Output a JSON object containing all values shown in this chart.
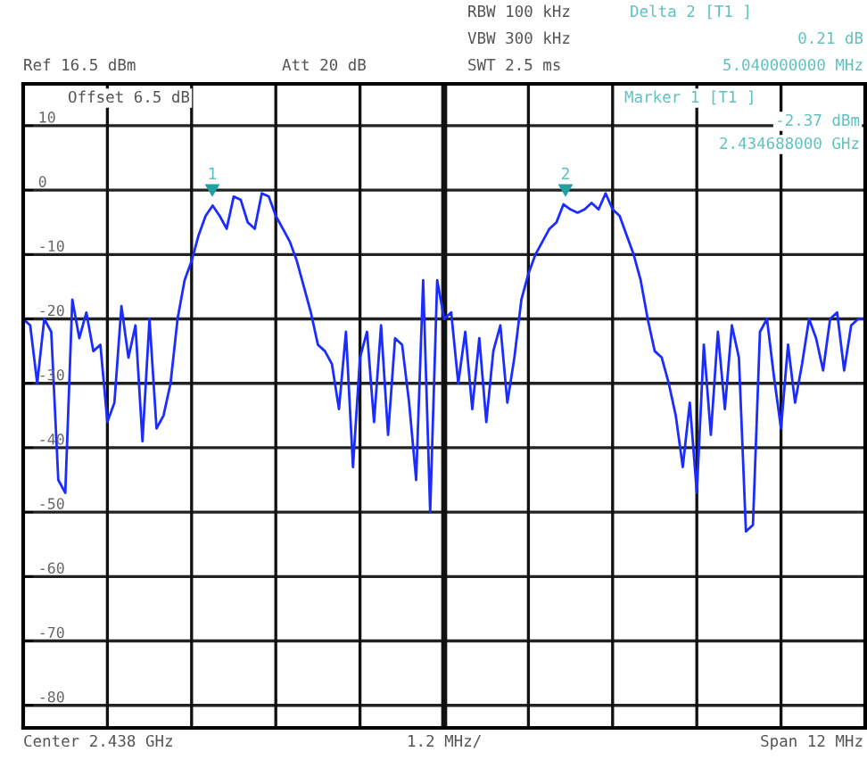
{
  "chart_data": {
    "type": "line",
    "categories": [
      null,
      null,
      null,
      null,
      null,
      null,
      null,
      null,
      null,
      null,
      null,
      null,
      null,
      null,
      null,
      null,
      null,
      null,
      null,
      null,
      null,
      null,
      null,
      null,
      null,
      null,
      null,
      null,
      null,
      null,
      null,
      null,
      null,
      null,
      null,
      null,
      null,
      null,
      null,
      null,
      null,
      null,
      null,
      null,
      null,
      null,
      null,
      null,
      null,
      null,
      null,
      null,
      null,
      null,
      null,
      null,
      null,
      null,
      null,
      null,
      null,
      null,
      null,
      null,
      null,
      null,
      null,
      null,
      null,
      null,
      null,
      null,
      null,
      null,
      null,
      null,
      null,
      null,
      null,
      null,
      null,
      null,
      null,
      null,
      null,
      null,
      null,
      null,
      null,
      null,
      null,
      null,
      null,
      null,
      null,
      null,
      null,
      null,
      null,
      null,
      null,
      null,
      null,
      null,
      null,
      null,
      null,
      null,
      null,
      null,
      null,
      null,
      null,
      null,
      null,
      null,
      null,
      null,
      null,
      null,
      null
    ],
    "ylim": [
      -83.5,
      16.5
    ],
    "yticks": [
      10,
      0,
      -10,
      -20,
      -30,
      -40,
      -50,
      -60,
      -70,
      -80
    ],
    "grid": true,
    "series": [
      {
        "color": "#1a2cff",
        "values": [
          -20,
          -21,
          -30,
          -20,
          -22,
          -45,
          -47,
          -17,
          -23,
          -19,
          -25,
          -24,
          -36,
          -33,
          -18,
          -26,
          -21,
          -39,
          -20,
          -37,
          -35,
          -30,
          -20,
          -14,
          -11,
          -7,
          -4,
          -2.4,
          -4,
          -6,
          -1,
          -1.5,
          -5,
          -6,
          -0.5,
          -1,
          -4,
          -6,
          -8,
          -11,
          -15,
          -19,
          -24,
          -25,
          -27,
          -34,
          -22,
          -43,
          -26,
          -22,
          -36,
          -21,
          -38,
          -23,
          -24,
          -33,
          -45,
          -14,
          -50,
          -14,
          -20,
          -19,
          -30,
          -22,
          -34,
          -23,
          -36,
          -25,
          -21,
          -33,
          -26,
          -17,
          -13,
          -10,
          -8,
          -6,
          -5,
          -2.2,
          -3,
          -3.5,
          -3,
          -2,
          -3,
          -0.5,
          -3,
          -4,
          -7,
          -10,
          -14,
          -20,
          -25,
          -26,
          -30,
          -35,
          -43,
          -33,
          -47,
          -24,
          -38,
          -22,
          -34,
          -21,
          -26,
          -53,
          -52,
          -22,
          -20,
          -29,
          -37,
          -24,
          -33,
          -27,
          -20,
          -23,
          -28,
          -20,
          -19,
          -28,
          -21,
          -20,
          -20
        ],
        "marker": "none"
      }
    ],
    "annotations": [
      "RBW 100 kHz",
      "VBW 300 kHz",
      "Ref 16.5 dBm",
      "Att 20 dB",
      "SWT 2.5 ms",
      "Delta 2 [T1 ]",
      "0.21 dB",
      "5.040000000 MHz",
      "Offset 6.5 dB",
      "Marker 1 [T1 ]",
      "-2.37 dBm",
      "2.434688000 GHz",
      "Center 2.438 GHz",
      "1.2 MHz/",
      "Span 12 MHz",
      "1",
      "2"
    ]
  }
}
